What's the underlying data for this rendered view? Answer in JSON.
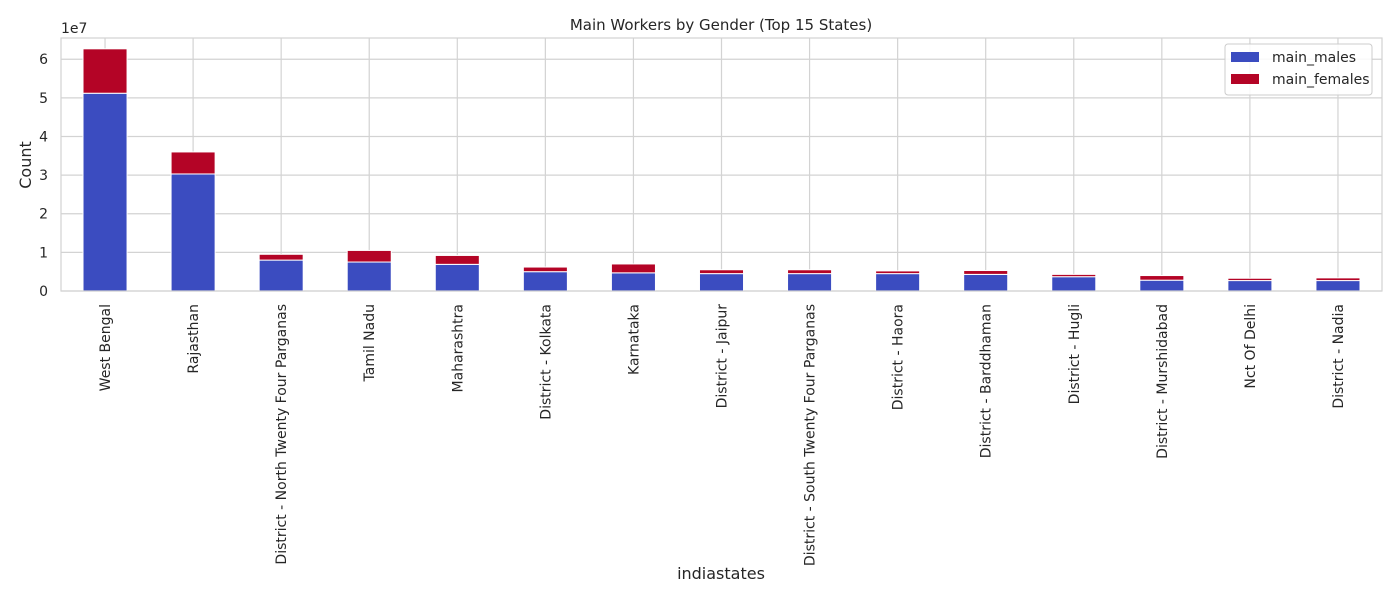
{
  "chart_data": {
    "type": "bar",
    "stacked": true,
    "title": "Main Workers by Gender (Top 15 States)",
    "xlabel": "indiastates",
    "ylabel": "Count",
    "y_scale_label": "1e7",
    "ylim": [
      0,
      6.55
    ],
    "y_unit_multiplier": 10000000,
    "yticks": [
      0,
      1,
      2,
      3,
      4,
      5,
      6
    ],
    "grid": true,
    "legend_position": "top-right",
    "categories": [
      "West Bengal",
      "Rajasthan",
      "District - North Twenty Four Parganas",
      "Tamil Nadu",
      "Maharashtra",
      "District - Kolkata",
      "Karnataka",
      "District - Jaipur",
      "District - South Twenty Four Parganas",
      "District - Haora",
      "District - Barddhaman",
      "District - Hugli",
      "District - Murshidabad",
      "Nct Of Delhi",
      "District - Nadia"
    ],
    "series": [
      {
        "name": "main_males",
        "color": "#3b4cc0",
        "values": [
          5.12,
          3.03,
          0.8,
          0.75,
          0.69,
          0.5,
          0.47,
          0.45,
          0.45,
          0.45,
          0.43,
          0.37,
          0.28,
          0.27,
          0.27
        ]
      },
      {
        "name": "main_females",
        "color": "#b40426",
        "values": [
          1.15,
          0.57,
          0.15,
          0.3,
          0.23,
          0.12,
          0.23,
          0.1,
          0.1,
          0.07,
          0.1,
          0.06,
          0.12,
          0.06,
          0.07
        ]
      }
    ]
  }
}
